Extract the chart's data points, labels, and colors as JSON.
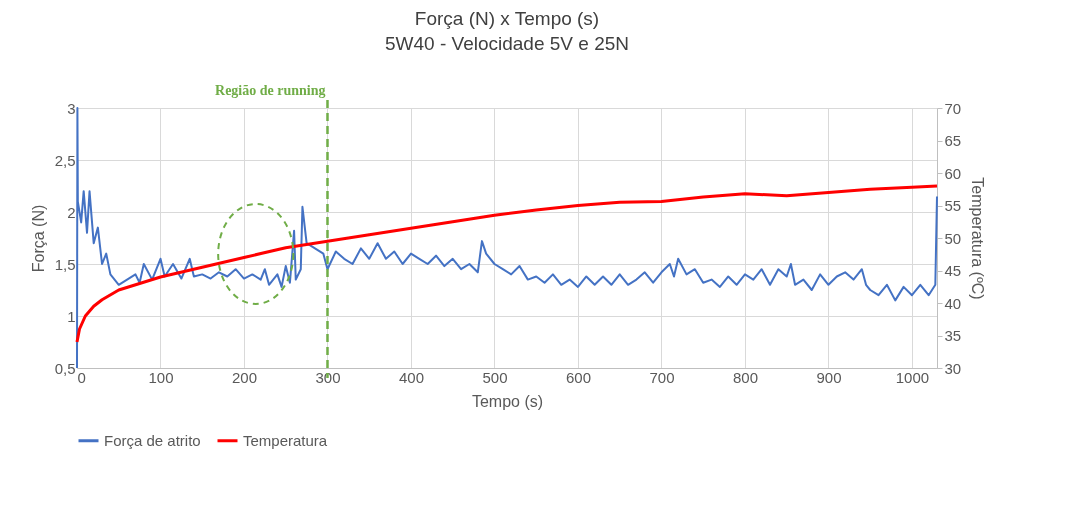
{
  "chart_data": {
    "type": "line",
    "title": "Força (N) x Tempo (s)",
    "subtitle": "5W40 - Velocidade 5V e 25N",
    "xlabel": "Tempo (s)",
    "ylabel": "Força (N)",
    "y2label": "Temperatura (ºC)",
    "xlim": [
      0,
      1030
    ],
    "xticks": [
      0,
      100,
      200,
      300,
      400,
      500,
      600,
      700,
      800,
      900,
      1000
    ],
    "ylim": [
      0.5,
      3
    ],
    "yticks": [
      {
        "value": 0.5,
        "label": "0,5"
      },
      1,
      {
        "value": 1.5,
        "label": "1,5"
      },
      2,
      {
        "value": 2.5,
        "label": "2,5"
      },
      3
    ],
    "y2lim": [
      30,
      70
    ],
    "y2ticks": [
      30,
      35,
      40,
      45,
      50,
      55,
      60,
      65,
      70
    ],
    "grid": true,
    "legend": "bottom",
    "line_style": "solid",
    "series": [
      {
        "name": "Força de atrito",
        "color": "#4472c4",
        "x": [
          0,
          0.5,
          1,
          5,
          8,
          12,
          15,
          20,
          25,
          30,
          35,
          40,
          45,
          50,
          60,
          70,
          75,
          80,
          90,
          100,
          105,
          115,
          125,
          135,
          140,
          150,
          160,
          170,
          180,
          190,
          200,
          210,
          220,
          225,
          230,
          240,
          245,
          250,
          255,
          260,
          262,
          268,
          270,
          275,
          285,
          295,
          300,
          310,
          320,
          330,
          340,
          350,
          360,
          370,
          380,
          390,
          400,
          410,
          420,
          430,
          440,
          450,
          460,
          470,
          480,
          485,
          490,
          500,
          510,
          520,
          530,
          540,
          550,
          560,
          570,
          580,
          590,
          600,
          610,
          620,
          630,
          640,
          650,
          660,
          670,
          680,
          690,
          700,
          710,
          715,
          720,
          730,
          740,
          750,
          760,
          770,
          780,
          790,
          800,
          810,
          820,
          830,
          840,
          850,
          855,
          860,
          870,
          880,
          890,
          900,
          910,
          920,
          930,
          940,
          945,
          950,
          960,
          970,
          980,
          990,
          1000,
          1010,
          1020,
          1028,
          1030
        ],
        "values": [
          0.5,
          3,
          2.1,
          1.9,
          2.2,
          1.8,
          2.2,
          1.7,
          1.85,
          1.5,
          1.6,
          1.4,
          1.35,
          1.3,
          1.35,
          1.4,
          1.32,
          1.5,
          1.35,
          1.55,
          1.38,
          1.5,
          1.36,
          1.55,
          1.38,
          1.4,
          1.36,
          1.42,
          1.38,
          1.45,
          1.36,
          1.4,
          1.35,
          1.45,
          1.3,
          1.4,
          1.28,
          1.48,
          1.32,
          1.82,
          1.35,
          1.45,
          2.05,
          1.7,
          1.65,
          1.6,
          1.45,
          1.62,
          1.55,
          1.5,
          1.65,
          1.55,
          1.7,
          1.55,
          1.62,
          1.5,
          1.6,
          1.55,
          1.5,
          1.58,
          1.48,
          1.55,
          1.45,
          1.5,
          1.42,
          1.72,
          1.6,
          1.5,
          1.45,
          1.4,
          1.48,
          1.35,
          1.38,
          1.32,
          1.4,
          1.3,
          1.35,
          1.28,
          1.38,
          1.3,
          1.38,
          1.3,
          1.4,
          1.3,
          1.35,
          1.42,
          1.32,
          1.42,
          1.5,
          1.38,
          1.55,
          1.4,
          1.45,
          1.32,
          1.35,
          1.28,
          1.38,
          1.3,
          1.4,
          1.35,
          1.45,
          1.3,
          1.45,
          1.38,
          1.5,
          1.3,
          1.35,
          1.25,
          1.4,
          1.3,
          1.38,
          1.42,
          1.35,
          1.45,
          1.3,
          1.25,
          1.2,
          1.3,
          1.15,
          1.28,
          1.2,
          1.3,
          1.2,
          1.3,
          2.15
        ]
      },
      {
        "name": "Temperatura",
        "color": "#ff0000",
        "axis": "y2",
        "x": [
          0,
          3,
          10,
          20,
          30,
          50,
          75,
          100,
          150,
          200,
          250,
          300,
          350,
          400,
          450,
          500,
          550,
          600,
          650,
          700,
          750,
          800,
          850,
          900,
          950,
          1000,
          1030
        ],
        "values": [
          34,
          36,
          38,
          39.5,
          40.5,
          42,
          43,
          44,
          45.5,
          47,
          48.5,
          49.5,
          50.5,
          51.5,
          52.5,
          53.5,
          54.3,
          55,
          55.5,
          55.6,
          56.3,
          56.8,
          56.5,
          57,
          57.5,
          57.8,
          58
        ]
      }
    ],
    "ref_lines": [
      {
        "axis": "x",
        "value": 300,
        "label": "Região de running",
        "color": "#70ad47",
        "line_style": "dashed"
      }
    ]
  }
}
